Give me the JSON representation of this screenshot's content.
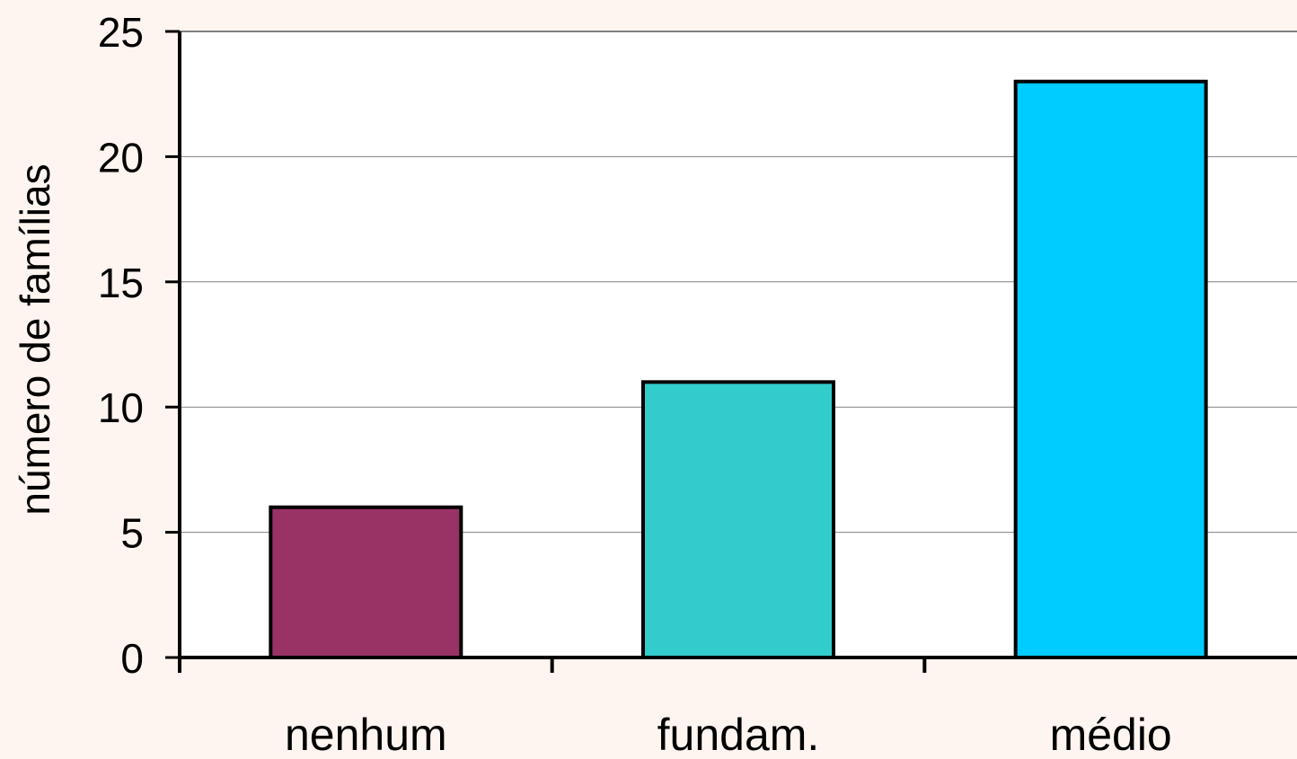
{
  "chart_data": {
    "type": "bar",
    "title": "",
    "xlabel": "",
    "ylabel": "número de famílias",
    "categories": [
      "nenhum",
      "fundam.",
      "médio"
    ],
    "values": [
      6,
      11,
      23
    ],
    "bar_colors": [
      "#993366",
      "#33cccc",
      "#00ccff"
    ],
    "ylim": [
      0,
      25
    ],
    "yticks": [
      0,
      5,
      10,
      15,
      20,
      25
    ],
    "ytick_labels": [
      "0",
      "5",
      "10",
      "15",
      "20",
      "25"
    ],
    "grid": true,
    "legend": "none"
  },
  "colors": {
    "background": "#fff5f0",
    "plot_area": "#ffffff",
    "gridline": "#808080",
    "axis": "#000000"
  }
}
